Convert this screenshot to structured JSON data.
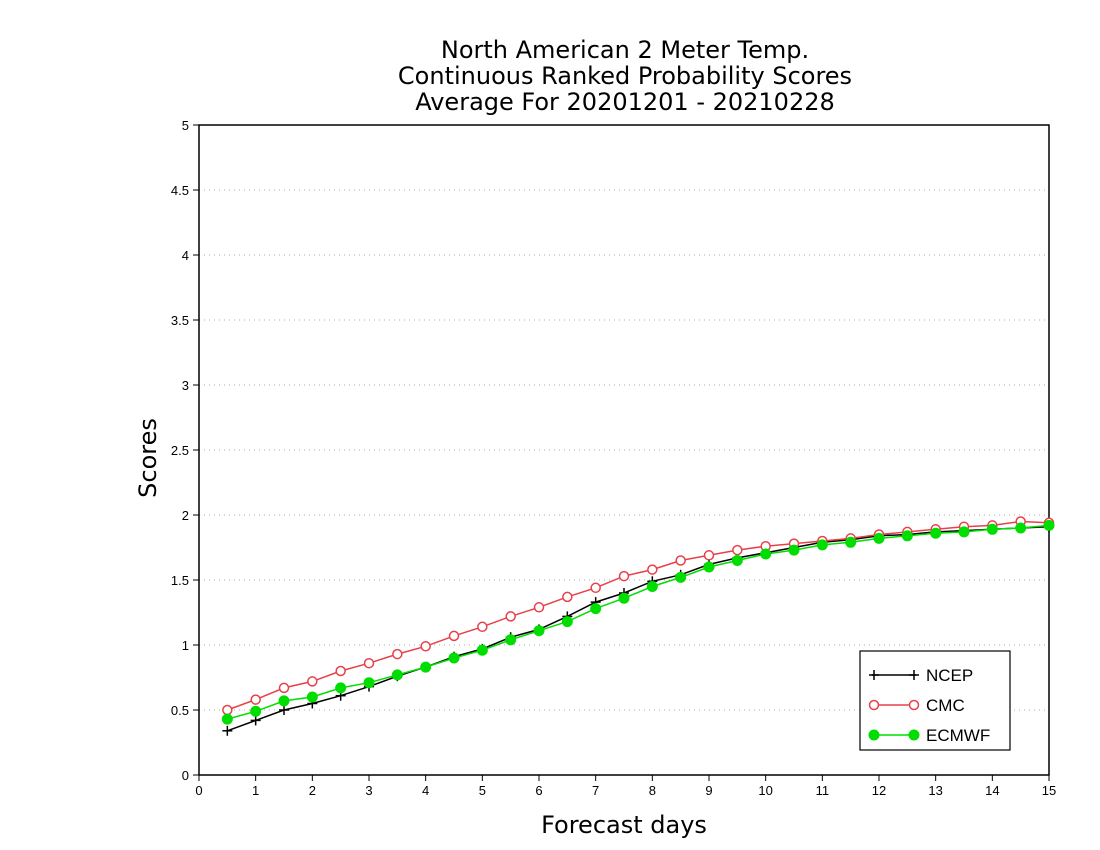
{
  "chart_data": {
    "type": "line",
    "title": [
      "North American 2 Meter Temp.",
      "Continuous Ranked Probability Scores",
      "Average For 20201201 - 20210228"
    ],
    "xlabel": "Forecast days",
    "ylabel": "Scores",
    "xlim": [
      0,
      15
    ],
    "ylim": [
      0,
      5
    ],
    "xticks": [
      "0",
      "1",
      "2",
      "3",
      "4",
      "5",
      "6",
      "7",
      "8",
      "9",
      "10",
      "11",
      "12",
      "13",
      "14",
      "15"
    ],
    "yticks": [
      "0",
      "0.5",
      "1",
      "1.5",
      "2",
      "2.5",
      "3",
      "3.5",
      "4",
      "4.5",
      "5"
    ],
    "grid": true,
    "legend_position": "bottom-right",
    "x": [
      0.5,
      1,
      1.5,
      2,
      2.5,
      3,
      3.5,
      4,
      4.5,
      5,
      5.5,
      6,
      6.5,
      7,
      7.5,
      8,
      8.5,
      9,
      9.5,
      10,
      10.5,
      11,
      11.5,
      12,
      12.5,
      13,
      13.5,
      14,
      14.5,
      15
    ],
    "series": [
      {
        "name": "NCEP",
        "color": "#000000",
        "marker": "plus",
        "values": [
          0.34,
          0.42,
          0.5,
          0.55,
          0.61,
          0.68,
          0.76,
          0.83,
          0.91,
          0.97,
          1.06,
          1.12,
          1.22,
          1.33,
          1.4,
          1.49,
          1.54,
          1.62,
          1.67,
          1.71,
          1.75,
          1.79,
          1.81,
          1.84,
          1.85,
          1.87,
          1.88,
          1.89,
          1.9,
          1.91
        ]
      },
      {
        "name": "CMC",
        "color": "#e8404a",
        "marker": "open-circle",
        "values": [
          0.5,
          0.58,
          0.67,
          0.72,
          0.8,
          0.86,
          0.93,
          0.99,
          1.07,
          1.14,
          1.22,
          1.29,
          1.37,
          1.44,
          1.53,
          1.58,
          1.65,
          1.69,
          1.73,
          1.76,
          1.78,
          1.8,
          1.82,
          1.85,
          1.87,
          1.89,
          1.91,
          1.92,
          1.95,
          1.94
        ]
      },
      {
        "name": "ECMWF",
        "color": "#00dd00",
        "marker": "filled-circle",
        "values": [
          0.43,
          0.49,
          0.57,
          0.6,
          0.67,
          0.71,
          0.77,
          0.83,
          0.9,
          0.96,
          1.04,
          1.11,
          1.18,
          1.28,
          1.36,
          1.45,
          1.52,
          1.6,
          1.65,
          1.7,
          1.73,
          1.77,
          1.79,
          1.82,
          1.84,
          1.86,
          1.87,
          1.89,
          1.9,
          1.92
        ]
      }
    ]
  }
}
